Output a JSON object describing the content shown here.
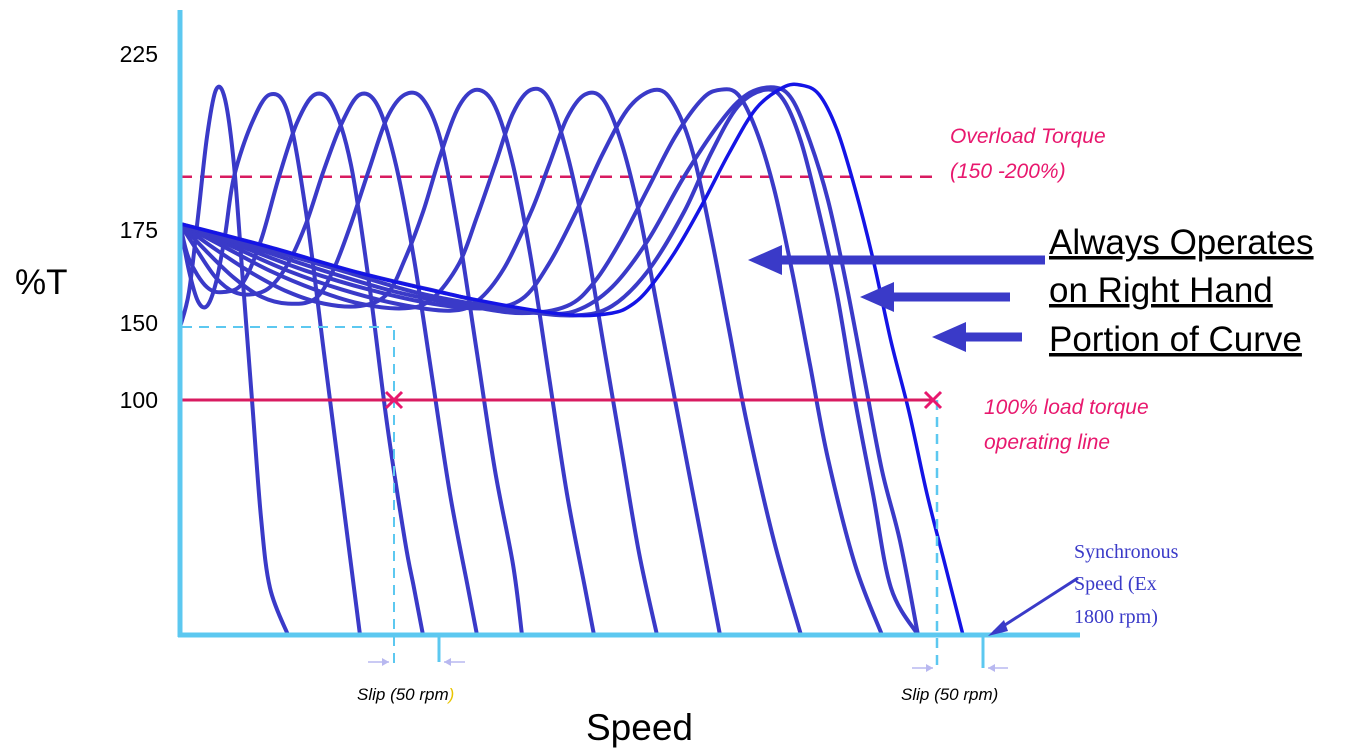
{
  "chart_data": {
    "type": "line",
    "title": "",
    "xlabel": "Speed",
    "ylabel": "%T",
    "yticks": [
      {
        "value": 225,
        "label": "225"
      },
      {
        "value": 175,
        "label": "175"
      },
      {
        "value": 150,
        "label": "150"
      },
      {
        "value": 100,
        "label": "100"
      }
    ],
    "ylim": [
      0,
      243
    ],
    "xlim": [
      0,
      100
    ],
    "grid": false,
    "series": [
      {
        "values": [
          [
            0,
            131
          ],
          [
            1,
            146
          ],
          [
            2,
            178
          ],
          [
            3,
            212
          ],
          [
            4,
            232
          ],
          [
            5,
            228
          ],
          [
            6,
            200
          ],
          [
            7,
            150
          ],
          [
            8,
            100
          ],
          [
            9,
            50
          ],
          [
            10,
            20
          ],
          [
            12,
            0
          ]
        ]
      },
      {
        "values": [
          [
            0,
            175
          ],
          [
            1,
            155
          ],
          [
            2,
            142
          ],
          [
            3,
            140
          ],
          [
            4,
            150
          ],
          [
            5,
            170
          ],
          [
            6,
            195
          ],
          [
            8,
            218
          ],
          [
            10,
            230
          ],
          [
            12,
            222
          ],
          [
            14,
            180
          ],
          [
            16,
            120
          ],
          [
            18,
            60
          ],
          [
            19,
            30
          ],
          [
            20,
            0
          ]
        ]
      },
      {
        "values": [
          [
            0,
            175
          ],
          [
            1,
            160
          ],
          [
            3,
            148
          ],
          [
            5,
            146
          ],
          [
            7,
            150
          ],
          [
            9,
            168
          ],
          [
            11,
            195
          ],
          [
            13,
            218
          ],
          [
            15,
            230
          ],
          [
            17,
            225
          ],
          [
            19,
            200
          ],
          [
            21,
            150
          ],
          [
            23,
            90
          ],
          [
            25,
            40
          ],
          [
            26,
            20
          ],
          [
            27,
            0
          ]
        ]
      },
      {
        "values": [
          [
            0,
            175
          ],
          [
            2,
            163
          ],
          [
            4,
            152
          ],
          [
            6,
            146
          ],
          [
            8,
            145
          ],
          [
            10,
            148
          ],
          [
            12,
            158
          ],
          [
            14,
            175
          ],
          [
            16,
            198
          ],
          [
            18,
            218
          ],
          [
            20,
            230
          ],
          [
            22,
            225
          ],
          [
            24,
            200
          ],
          [
            26,
            160
          ],
          [
            28,
            110
          ],
          [
            30,
            60
          ],
          [
            32,
            20
          ],
          [
            33,
            0
          ]
        ]
      },
      {
        "values": [
          [
            0,
            175
          ],
          [
            3,
            163
          ],
          [
            6,
            152
          ],
          [
            9,
            144
          ],
          [
            12,
            141
          ],
          [
            15,
            143
          ],
          [
            17,
            155
          ],
          [
            19,
            175
          ],
          [
            21,
            198
          ],
          [
            23,
            220
          ],
          [
            25,
            230
          ],
          [
            27,
            228
          ],
          [
            29,
            210
          ],
          [
            31,
            170
          ],
          [
            33,
            120
          ],
          [
            35,
            70
          ],
          [
            37,
            30
          ],
          [
            38,
            0
          ]
        ]
      },
      {
        "values": [
          [
            0,
            175
          ],
          [
            4,
            164
          ],
          [
            8,
            154
          ],
          [
            12,
            146
          ],
          [
            16,
            141
          ],
          [
            20,
            140
          ],
          [
            23,
            145
          ],
          [
            25,
            160
          ],
          [
            27,
            180
          ],
          [
            29,
            205
          ],
          [
            31,
            225
          ],
          [
            33,
            232
          ],
          [
            35,
            225
          ],
          [
            37,
            200
          ],
          [
            39,
            160
          ],
          [
            41,
            110
          ],
          [
            43,
            60
          ],
          [
            45,
            20
          ],
          [
            46,
            0
          ]
        ]
      },
      {
        "values": [
          [
            0,
            175
          ],
          [
            5,
            165
          ],
          [
            10,
            155
          ],
          [
            15,
            147
          ],
          [
            20,
            141
          ],
          [
            25,
            139
          ],
          [
            28,
            143
          ],
          [
            31,
            158
          ],
          [
            33,
            178
          ],
          [
            35,
            200
          ],
          [
            37,
            222
          ],
          [
            39,
            232
          ],
          [
            41,
            228
          ],
          [
            43,
            205
          ],
          [
            45,
            170
          ],
          [
            47,
            125
          ],
          [
            49,
            80
          ],
          [
            51,
            35
          ],
          [
            53,
            0
          ]
        ]
      },
      {
        "values": [
          [
            0,
            175
          ],
          [
            6,
            165
          ],
          [
            12,
            155
          ],
          [
            18,
            147
          ],
          [
            24,
            141
          ],
          [
            30,
            138
          ],
          [
            33,
            142
          ],
          [
            36,
            156
          ],
          [
            39,
            180
          ],
          [
            41,
            200
          ],
          [
            43,
            220
          ],
          [
            45,
            230
          ],
          [
            47,
            228
          ],
          [
            49,
            210
          ],
          [
            51,
            180
          ],
          [
            53,
            140
          ],
          [
            55,
            100
          ],
          [
            57,
            60
          ],
          [
            60,
            0
          ]
        ]
      },
      {
        "values": [
          [
            0,
            175
          ],
          [
            7,
            165
          ],
          [
            14,
            155
          ],
          [
            21,
            147
          ],
          [
            28,
            141
          ],
          [
            34,
            139
          ],
          [
            38,
            143
          ],
          [
            41,
            158
          ],
          [
            44,
            180
          ],
          [
            47,
            205
          ],
          [
            50,
            225
          ],
          [
            53,
            232
          ],
          [
            55,
            225
          ],
          [
            57,
            205
          ],
          [
            59,
            170
          ],
          [
            61,
            130
          ],
          [
            63,
            90
          ],
          [
            66,
            40
          ],
          [
            69,
            0
          ]
        ]
      },
      {
        "values": [
          [
            0,
            175
          ],
          [
            8,
            165
          ],
          [
            16,
            155
          ],
          [
            24,
            146
          ],
          [
            32,
            140
          ],
          [
            38,
            137
          ],
          [
            43,
            140
          ],
          [
            46,
            150
          ],
          [
            49,
            168
          ],
          [
            52,
            190
          ],
          [
            55,
            212
          ],
          [
            58,
            228
          ],
          [
            60,
            232
          ],
          [
            62,
            230
          ],
          [
            64,
            215
          ],
          [
            66,
            190
          ],
          [
            68,
            155
          ],
          [
            70,
            115
          ],
          [
            72,
            75
          ],
          [
            75,
            30
          ],
          [
            78,
            0
          ]
        ]
      },
      {
        "values": [
          [
            0,
            175
          ],
          [
            9,
            165
          ],
          [
            18,
            155
          ],
          [
            26,
            146
          ],
          [
            34,
            140
          ],
          [
            40,
            137
          ],
          [
            44,
            138
          ],
          [
            48,
            148
          ],
          [
            52,
            168
          ],
          [
            56,
            195
          ],
          [
            60,
            218
          ],
          [
            63,
            230
          ],
          [
            66,
            233
          ],
          [
            68,
            228
          ],
          [
            70,
            210
          ],
          [
            72,
            185
          ],
          [
            74,
            150
          ],
          [
            76,
            110
          ],
          [
            78,
            70
          ],
          [
            80,
            40
          ],
          [
            82,
            0
          ]
        ]
      },
      {
        "values": [
          [
            0,
            175
          ],
          [
            10,
            165
          ],
          [
            20,
            154
          ],
          [
            30,
            145
          ],
          [
            38,
            138
          ],
          [
            44,
            136
          ],
          [
            48,
            140
          ],
          [
            52,
            155
          ],
          [
            56,
            180
          ],
          [
            59,
            205
          ],
          [
            62,
            225
          ],
          [
            65,
            232
          ],
          [
            67,
            228
          ],
          [
            69,
            210
          ],
          [
            71,
            180
          ],
          [
            73,
            145
          ],
          [
            75,
            100
          ],
          [
            77,
            60
          ],
          [
            79,
            20
          ],
          [
            82,
            0
          ]
        ]
      },
      {
        "values": [
          [
            0,
            175
          ],
          [
            10,
            165
          ],
          [
            20,
            154
          ],
          [
            30,
            145
          ],
          [
            38,
            139
          ],
          [
            44,
            136
          ],
          [
            48,
            137
          ],
          [
            50,
            140
          ],
          [
            52,
            147
          ],
          [
            55,
            163
          ],
          [
            58,
            183
          ],
          [
            61,
            205
          ],
          [
            64,
            224
          ],
          [
            67,
            233
          ],
          [
            69,
            234
          ],
          [
            71,
            230
          ],
          [
            73,
            215
          ],
          [
            75,
            190
          ],
          [
            77,
            160
          ],
          [
            79,
            125
          ],
          [
            81,
            95
          ],
          [
            83,
            60
          ],
          [
            85,
            30
          ],
          [
            87,
            0
          ]
        ]
      }
    ],
    "reference_lines": [
      {
        "y": 195,
        "style": "dashed",
        "label": [
          "Overload Torque",
          "(150 -200%)"
        ]
      },
      {
        "y": 100,
        "style": "solid",
        "label": [
          "100% load  torque",
          "operating line"
        ]
      }
    ],
    "annotations": {
      "right_note": [
        "Always Operates",
        "on Right Hand",
        "Portion of Curve"
      ],
      "slip_left": [
        "Slip (50 rpm",
        ")"
      ],
      "slip_right": "Slip (50 rpm)",
      "synchronous": [
        "Synchronous",
        "Speed (Ex",
        "1800 rpm)"
      ]
    },
    "colors": {
      "curves": "#3a3ac8",
      "last_curve": "#1414e6",
      "axes": "#5cc8f0",
      "overload": "#d81b60",
      "load_line": "#d81b60",
      "markers": "#e8186e",
      "notes": "#e8186e",
      "arrows": "#3a3ac8",
      "slip_close_paren": "#e8c400"
    }
  }
}
